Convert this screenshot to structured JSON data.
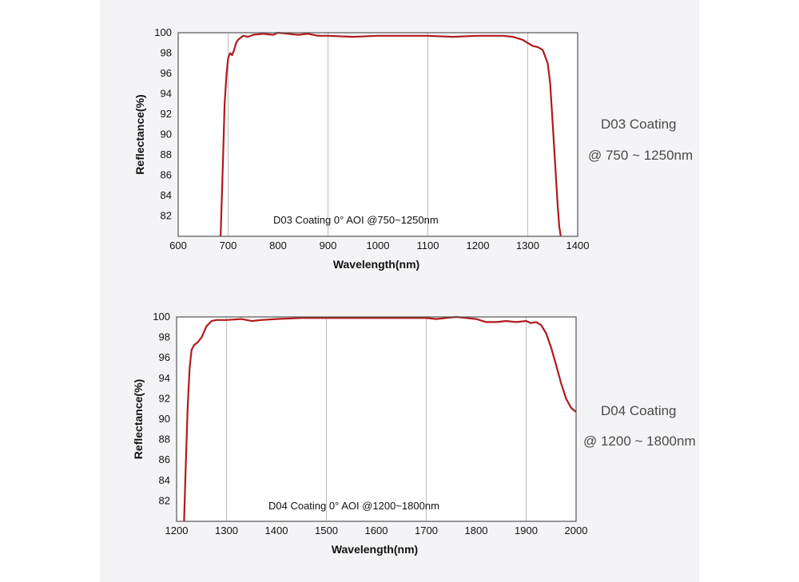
{
  "colors": {
    "line": "#b11a1a",
    "grid": "#bdbdbd",
    "frame": "#555555",
    "panel": "#f4f4f6"
  },
  "chart_data": [
    {
      "type": "line",
      "title": "",
      "annotation": "D03 Coating  0°  AOI @750~1250nm",
      "xlabel": "Wavelength(nm)",
      "ylabel": "Reflectance(%)",
      "xlim": [
        600,
        1400
      ],
      "ylim": [
        80,
        100
      ],
      "xticks": [
        600,
        700,
        800,
        900,
        1000,
        1100,
        1200,
        1300,
        1400
      ],
      "yticks": [
        82,
        84,
        86,
        88,
        90,
        92,
        94,
        96,
        98,
        100
      ],
      "grid_x": [
        700,
        900,
        1100,
        1300
      ],
      "series": [
        {
          "name": "D03 Coating",
          "x": [
            685,
            690,
            693,
            697,
            700,
            704,
            708,
            712,
            716,
            720,
            725,
            730,
            740,
            750,
            770,
            790,
            800,
            820,
            840,
            860,
            880,
            900,
            950,
            1000,
            1050,
            1100,
            1150,
            1200,
            1250,
            1270,
            1290,
            1300,
            1310,
            1320,
            1330,
            1340,
            1345,
            1350,
            1355,
            1360,
            1363,
            1366
          ],
          "y": [
            80,
            88,
            93,
            96,
            97.5,
            98,
            97.8,
            98.3,
            99,
            99.3,
            99.5,
            99.7,
            99.6,
            99.8,
            99.9,
            99.8,
            100,
            99.9,
            99.8,
            99.9,
            99.7,
            99.7,
            99.6,
            99.7,
            99.7,
            99.7,
            99.6,
            99.7,
            99.7,
            99.6,
            99.3,
            99,
            98.7,
            98.6,
            98.3,
            97,
            95,
            91,
            87,
            83,
            81,
            80
          ]
        }
      ],
      "side_title": "D03 Coating",
      "side_range": "@ 750 ~ 1250nm"
    },
    {
      "type": "line",
      "title": "",
      "annotation": "D04 Coating  0°  AOI @1200~1800nm",
      "xlabel": "Wavelength(nm)",
      "ylabel": "Reflectance(%)",
      "xlim": [
        1200,
        2000
      ],
      "ylim": [
        80,
        100
      ],
      "xticks": [
        1200,
        1300,
        1400,
        1500,
        1600,
        1700,
        1800,
        1900,
        2000
      ],
      "yticks": [
        82,
        84,
        86,
        88,
        90,
        92,
        94,
        96,
        98,
        100
      ],
      "grid_x": [
        1300,
        1500,
        1700,
        1900
      ],
      "series": [
        {
          "name": "D04 Coating",
          "x": [
            1215,
            1218,
            1222,
            1226,
            1230,
            1236,
            1242,
            1250,
            1260,
            1270,
            1280,
            1300,
            1330,
            1350,
            1370,
            1400,
            1450,
            1500,
            1550,
            1600,
            1650,
            1700,
            1720,
            1740,
            1760,
            1780,
            1800,
            1820,
            1840,
            1860,
            1880,
            1900,
            1910,
            1920,
            1930,
            1940,
            1950,
            1960,
            1970,
            1980,
            1990,
            2000
          ],
          "y": [
            80,
            85,
            91,
            95,
            96.8,
            97.3,
            97.5,
            98,
            99.1,
            99.6,
            99.7,
            99.7,
            99.8,
            99.6,
            99.7,
            99.8,
            99.9,
            99.9,
            99.9,
            99.9,
            99.9,
            99.9,
            99.8,
            99.9,
            100,
            99.9,
            99.8,
            99.5,
            99.5,
            99.6,
            99.5,
            99.6,
            99.4,
            99.5,
            99.2,
            98.4,
            97,
            95.3,
            93.5,
            92,
            91.1,
            90.7
          ]
        }
      ],
      "side_title": "D04 Coating",
      "side_range": "@ 1200 ~ 1800nm"
    }
  ]
}
